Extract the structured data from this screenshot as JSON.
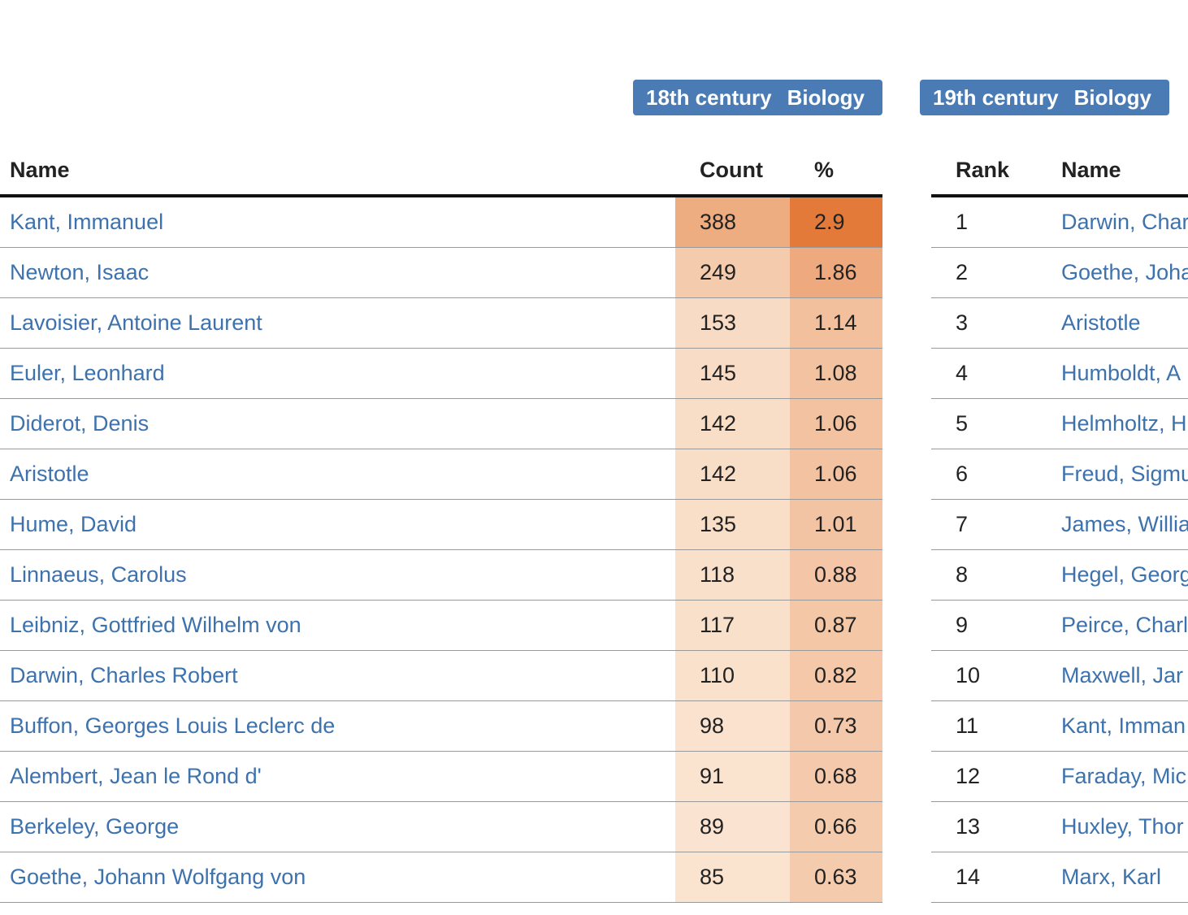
{
  "badges": {
    "left": {
      "century": "18th century",
      "field": "Biology"
    },
    "right": {
      "century": "19th century",
      "field": "Biology"
    }
  },
  "table1": {
    "headers": {
      "name": "Name",
      "count": "Count",
      "pct": "%"
    },
    "rows": [
      {
        "name": "Kant, Immanuel",
        "count": "388",
        "pct": "2.9"
      },
      {
        "name": "Newton, Isaac",
        "count": "249",
        "pct": "1.86"
      },
      {
        "name": "Lavoisier, Antoine Laurent",
        "count": "153",
        "pct": "1.14"
      },
      {
        "name": "Euler, Leonhard",
        "count": "145",
        "pct": "1.08"
      },
      {
        "name": "Diderot, Denis",
        "count": "142",
        "pct": "1.06"
      },
      {
        "name": "Aristotle",
        "count": "142",
        "pct": "1.06"
      },
      {
        "name": "Hume, David",
        "count": "135",
        "pct": "1.01"
      },
      {
        "name": "Linnaeus, Carolus",
        "count": "118",
        "pct": "0.88"
      },
      {
        "name": "Leibniz, Gottfried Wilhelm von",
        "count": "117",
        "pct": "0.87"
      },
      {
        "name": "Darwin, Charles Robert",
        "count": "110",
        "pct": "0.82"
      },
      {
        "name": "Buffon, Georges Louis Leclerc de",
        "count": "98",
        "pct": "0.73"
      },
      {
        "name": "Alembert, Jean le Rond d'",
        "count": "91",
        "pct": "0.68"
      },
      {
        "name": "Berkeley, George",
        "count": "89",
        "pct": "0.66"
      },
      {
        "name": "Goethe, Johann Wolfgang von",
        "count": "85",
        "pct": "0.63"
      }
    ]
  },
  "table2": {
    "headers": {
      "rank": "Rank",
      "name": "Name"
    },
    "rows": [
      {
        "rank": "1",
        "name": "Darwin, Char"
      },
      {
        "rank": "2",
        "name": "Goethe, Joha"
      },
      {
        "rank": "3",
        "name": "Aristotle"
      },
      {
        "rank": "4",
        "name": "Humboldt, A"
      },
      {
        "rank": "5",
        "name": "Helmholtz, H"
      },
      {
        "rank": "6",
        "name": "Freud, Sigmu"
      },
      {
        "rank": "7",
        "name": "James, Willia"
      },
      {
        "rank": "8",
        "name": "Hegel, Georg"
      },
      {
        "rank": "9",
        "name": "Peirce, Charl"
      },
      {
        "rank": "10",
        "name": "Maxwell, Jar"
      },
      {
        "rank": "11",
        "name": "Kant, Imman"
      },
      {
        "rank": "12",
        "name": "Faraday, Mic"
      },
      {
        "rank": "13",
        "name": "Huxley, Thor"
      },
      {
        "rank": "14",
        "name": "Marx, Karl"
      }
    ]
  },
  "colors": {
    "badge_bg": "#4a7bb5",
    "link": "#3d72ad",
    "heat_low": "#fbe9d8",
    "heat_high": "#e47a3a"
  }
}
